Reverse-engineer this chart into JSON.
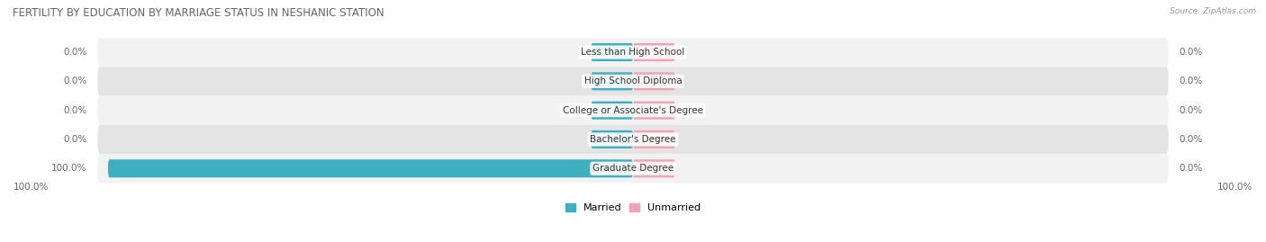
{
  "title": "FERTILITY BY EDUCATION BY MARRIAGE STATUS IN NESHANIC STATION",
  "source": "Source: ZipAtlas.com",
  "categories": [
    "Less than High School",
    "High School Diploma",
    "College or Associate's Degree",
    "Bachelor's Degree",
    "Graduate Degree"
  ],
  "married_values": [
    0.0,
    0.0,
    0.0,
    0.0,
    100.0
  ],
  "unmarried_values": [
    0.0,
    0.0,
    0.0,
    0.0,
    0.0
  ],
  "married_color": "#3DAFC0",
  "unmarried_color": "#F4A0B5",
  "row_bg_color_light": "#F2F2F2",
  "row_bg_color_dark": "#E4E4E4",
  "title_color": "#666666",
  "text_color": "#666666",
  "label_font_size": 7.5,
  "title_font_size": 8.5,
  "source_font_size": 6.5,
  "axis_label_font_size": 7.5,
  "legend_font_size": 8,
  "max_value": 100.0,
  "background_color": "#FFFFFF",
  "stub_size": 8.0
}
